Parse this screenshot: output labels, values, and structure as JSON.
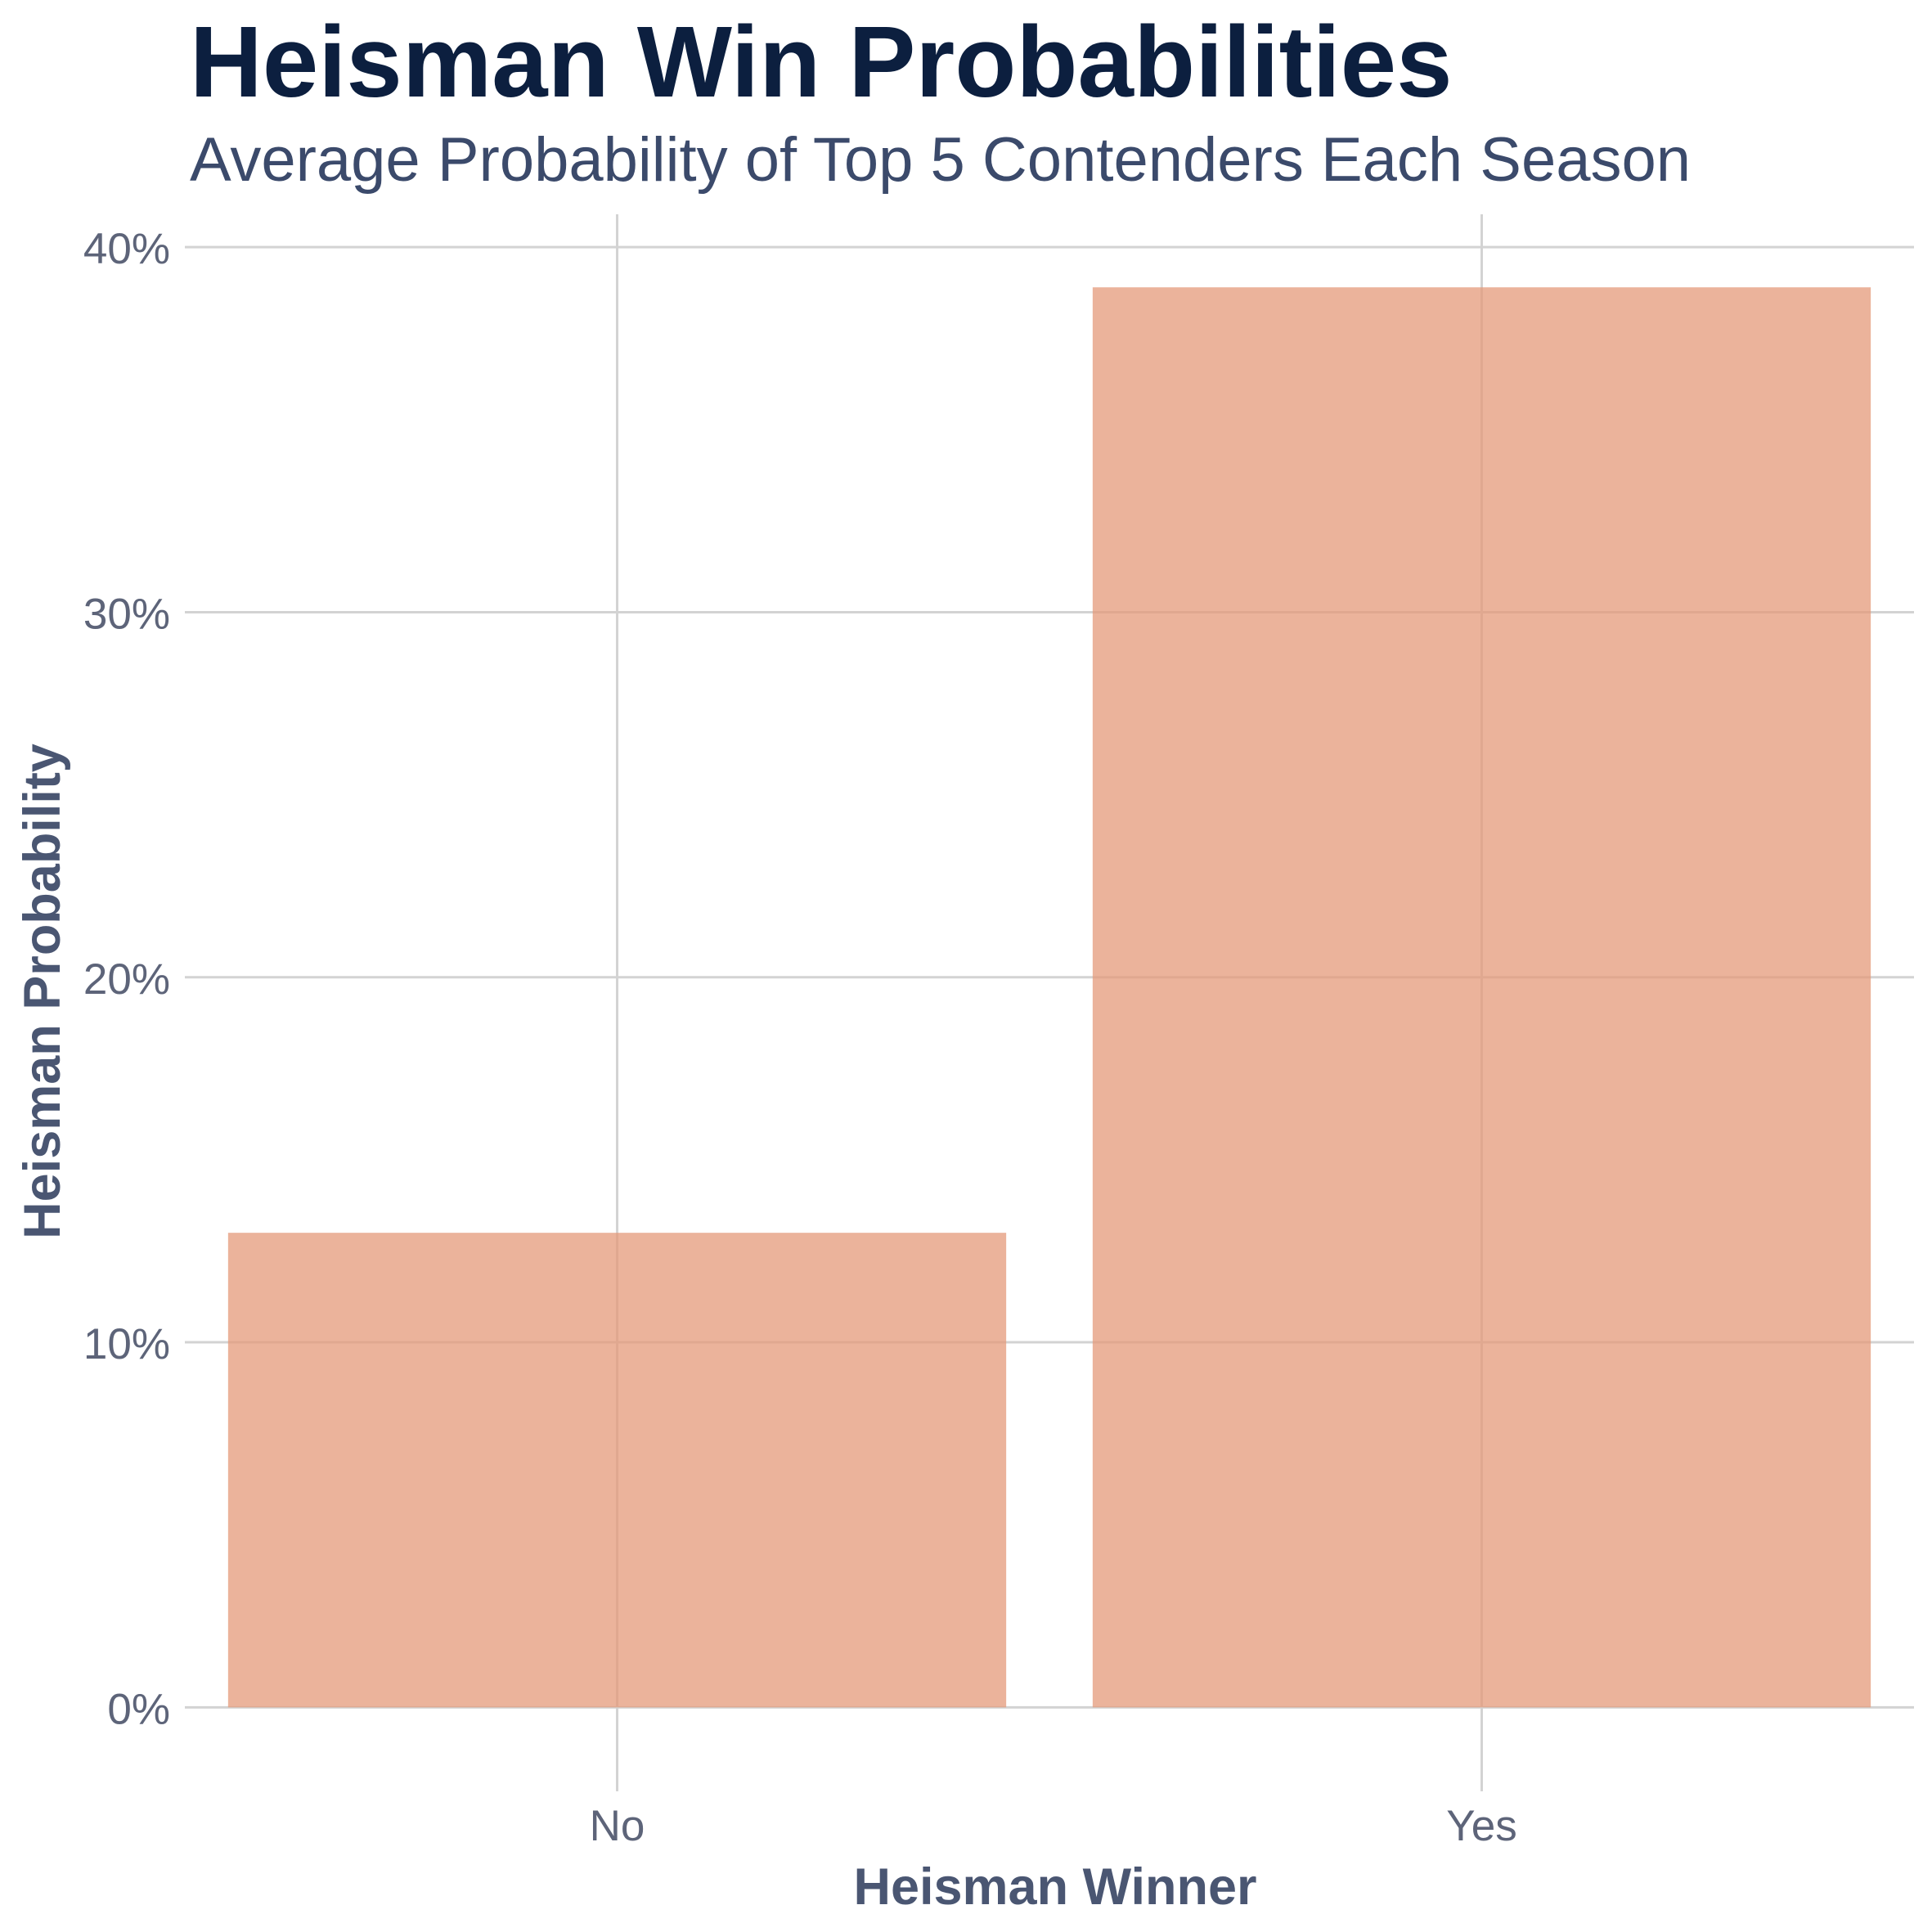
{
  "chart_data": {
    "type": "bar",
    "title": "Heisman Win Probabilities",
    "subtitle": "Average Probability of Top 5 Contenders Each Season",
    "xlabel": "Heisman Winner",
    "ylabel": "Heisman Probability",
    "categories": [
      "No",
      "Yes"
    ],
    "values": [
      0.13,
      0.389
    ],
    "ylim": [
      -0.023,
      0.409
    ],
    "yticks": [
      0,
      0.1,
      0.2,
      0.3,
      0.4
    ],
    "ytick_labels": [
      "0%",
      "10%",
      "20%",
      "30%",
      "40%"
    ],
    "grid": true,
    "legend": "none",
    "bar_color": "#e49a79",
    "bar_opacity": 0.75
  }
}
